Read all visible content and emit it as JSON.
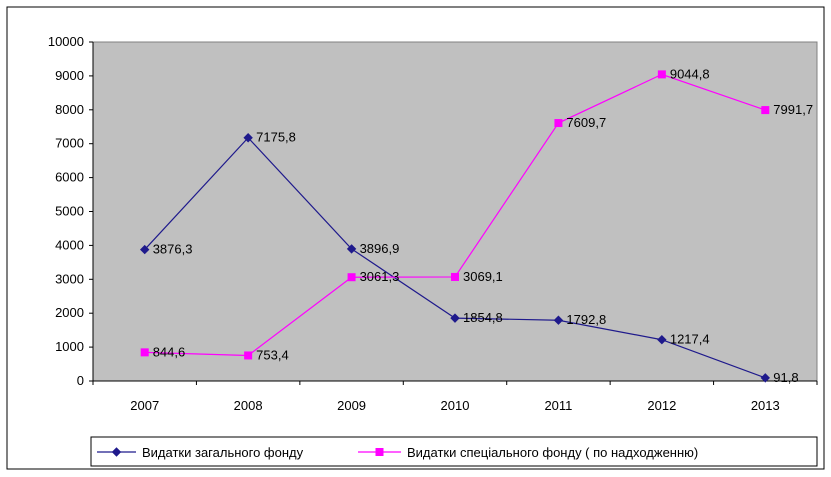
{
  "chart_data": {
    "type": "line",
    "title": "",
    "xlabel": "",
    "ylabel": "",
    "categories": [
      "2007",
      "2008",
      "2009",
      "2010",
      "2011",
      "2012",
      "2013"
    ],
    "ylim": [
      0,
      10000
    ],
    "yticks": [
      "0",
      "1000",
      "2000",
      "3000",
      "4000",
      "5000",
      "6000",
      "7000",
      "8000",
      "9000",
      "10000"
    ],
    "grid": false,
    "legend_position": "bottom",
    "series": [
      {
        "name": "Видатки загального фонду",
        "color": "#1f1a8c",
        "marker": "diamond",
        "values": [
          3876.3,
          7175.8,
          3896.9,
          1854.8,
          1792.8,
          1217.4,
          91.8
        ],
        "labels": [
          "3876,3",
          "7175,8",
          "3896,9",
          "1854,8",
          "1792,8",
          "1217,4",
          "91,8"
        ]
      },
      {
        "name": "Видатки спеціального фонду ( по надходженню)",
        "color": "#ff00ff",
        "marker": "square",
        "values": [
          844.6,
          753.4,
          3061.3,
          3069.1,
          7609.7,
          9044.8,
          7991.7
        ],
        "labels": [
          "844,6",
          "753,4",
          "3061,3",
          "3069,1",
          "7609,7",
          "9044,8",
          "7991,7"
        ]
      }
    ],
    "plot_background": "#c0c0c0"
  }
}
